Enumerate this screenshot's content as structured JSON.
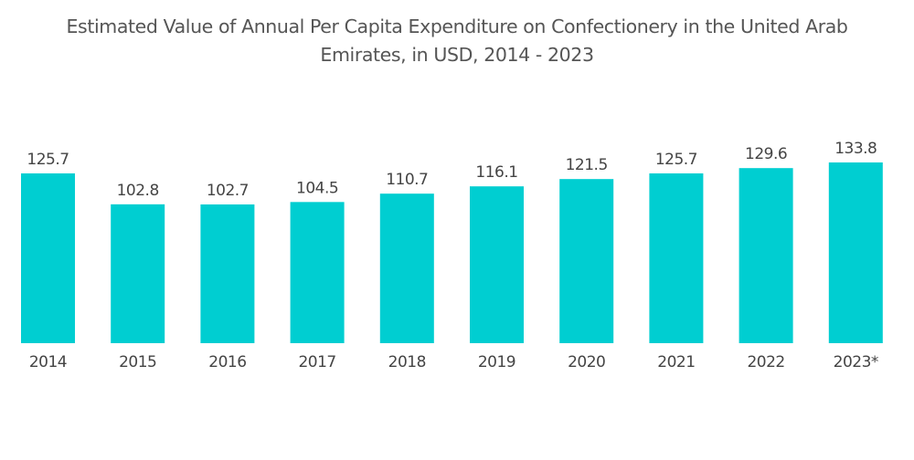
{
  "chart_data": {
    "type": "bar",
    "title": "Estimated Value of Annual Per Capita Expenditure on Confectionery in the United Arab Emirates, in USD, 2014 - 2023",
    "title_lines": [
      "Estimated Value of Annual Per Capita Expenditure on Confectionery in the United Arab",
      "Emirates, in USD, 2014 - 2023"
    ],
    "categories": [
      "2014",
      "2015",
      "2016",
      "2017",
      "2018",
      "2019",
      "2020",
      "2021",
      "2022",
      "2023*"
    ],
    "values": [
      125.7,
      102.8,
      102.7,
      104.5,
      110.7,
      116.1,
      121.5,
      125.7,
      129.6,
      133.8
    ],
    "data_labels": [
      "125.7",
      "102.8",
      "102.7",
      "104.5",
      "110.7",
      "116.1",
      "121.5",
      "125.7",
      "129.6",
      "133.8"
    ],
    "xlabel": "",
    "ylabel": "",
    "ylim": [
      0,
      135
    ],
    "grid": false,
    "legend": "none",
    "bar_color": "#00CED1"
  }
}
